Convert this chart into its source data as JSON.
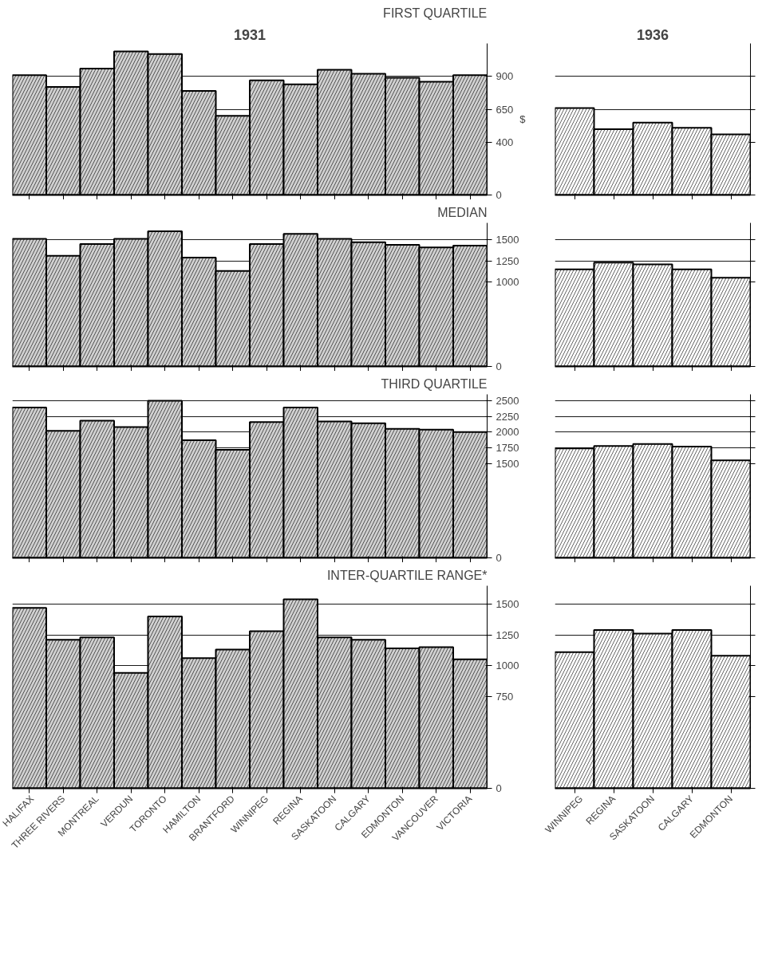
{
  "chart_data": [
    {
      "type": "bar",
      "title": "FIRST QUARTILE",
      "subtitle": "1931",
      "ylabel": "$",
      "categories": [
        null,
        null,
        null,
        null,
        null,
        null,
        null,
        null,
        null,
        null,
        null,
        null,
        null,
        null
      ],
      "series": [
        {
          "color": "#d0d0d0",
          "values": [
            910,
            820,
            960,
            1090,
            1070,
            790,
            600,
            870,
            840,
            950,
            920,
            890,
            860,
            910
          ]
        }
      ],
      "ylim": [
        0,
        1150
      ],
      "yticks": [
        0,
        400,
        650,
        900
      ],
      "grid": "y",
      "tick_labels": "y"
    },
    {
      "type": "bar",
      "subtitle": "1936",
      "categories": [
        null,
        null,
        null,
        null,
        null
      ],
      "series": [
        {
          "color": "#ffffff",
          "values": [
            660,
            500,
            550,
            510,
            460
          ]
        }
      ],
      "ylim": [
        0,
        1150
      ],
      "yticks": [
        0,
        400,
        650,
        900
      ],
      "grid": "y",
      "tick_labels": false
    },
    {
      "type": "bar",
      "title": "MEDIAN",
      "categories": [
        null,
        null,
        null,
        null,
        null,
        null,
        null,
        null,
        null,
        null,
        null,
        null,
        null,
        null
      ],
      "series": [
        {
          "color": "#d0d0d0",
          "values": [
            1510,
            1310,
            1450,
            1510,
            1600,
            1290,
            1130,
            1450,
            1570,
            1510,
            1470,
            1440,
            1410,
            1430
          ]
        }
      ],
      "ylim": [
        0,
        1700
      ],
      "yticks": [
        0,
        1000,
        1250,
        1500
      ],
      "grid": "y",
      "tick_labels": "y"
    },
    {
      "type": "bar",
      "categories": [
        null,
        null,
        null,
        null,
        null
      ],
      "series": [
        {
          "color": "#ffffff",
          "values": [
            1150,
            1230,
            1210,
            1150,
            1050
          ]
        }
      ],
      "ylim": [
        0,
        1700
      ],
      "yticks": [
        0,
        1000,
        1250,
        1500
      ],
      "grid": "y",
      "tick_labels": false
    },
    {
      "type": "bar",
      "title": "THIRD QUARTILE",
      "categories": [
        null,
        null,
        null,
        null,
        null,
        null,
        null,
        null,
        null,
        null,
        null,
        null,
        null,
        null
      ],
      "series": [
        {
          "color": "#d0d0d0",
          "values": [
            2390,
            2020,
            2180,
            2080,
            2500,
            1870,
            1720,
            2160,
            2390,
            2170,
            2140,
            2050,
            2040,
            2000
          ]
        }
      ],
      "ylim": [
        0,
        2600
      ],
      "yticks": [
        0,
        1500,
        1750,
        2000,
        2250,
        2500
      ],
      "grid": "y",
      "tick_labels": "y"
    },
    {
      "type": "bar",
      "categories": [
        null,
        null,
        null,
        null,
        null
      ],
      "series": [
        {
          "color": "#ffffff",
          "values": [
            1740,
            1780,
            1810,
            1770,
            1550
          ]
        }
      ],
      "ylim": [
        0,
        2600
      ],
      "yticks": [
        0,
        1500,
        1750,
        2000,
        2250,
        2500
      ],
      "grid": "y",
      "tick_labels": false
    },
    {
      "type": "bar",
      "title": "INTER-QUARTILE RANGE*",
      "categories": [
        "HALIFAX",
        "THREE RIVERS",
        "MONTREAL",
        "VERDUN",
        "TORONTO",
        "HAMILTON",
        "BRANTFORD",
        "WINNIPEG",
        "REGINA",
        "SASKATOON",
        "CALGARY",
        "EDMONTON",
        "VANCOUVER",
        "VICTORIA"
      ],
      "series": [
        {
          "color": "#d0d0d0",
          "values": [
            1470,
            1210,
            1230,
            940,
            1400,
            1060,
            1130,
            1280,
            1540,
            1230,
            1210,
            1140,
            1150,
            1050
          ]
        }
      ],
      "ylim": [
        0,
        1650
      ],
      "yticks": [
        0,
        750,
        1000,
        1250,
        1500
      ],
      "grid": "y"
    },
    {
      "type": "bar",
      "categories": [
        "WINNIPEG",
        "REGINA",
        "SASKATOON",
        "CALGARY",
        "EDMONTON"
      ],
      "series": [
        {
          "color": "#ffffff",
          "values": [
            1110,
            1290,
            1260,
            1290,
            1080
          ]
        }
      ],
      "ylim": [
        0,
        1650
      ],
      "yticks": [
        0,
        750,
        1000,
        1250,
        1500
      ],
      "grid": "y",
      "tick_labels": "x"
    }
  ]
}
